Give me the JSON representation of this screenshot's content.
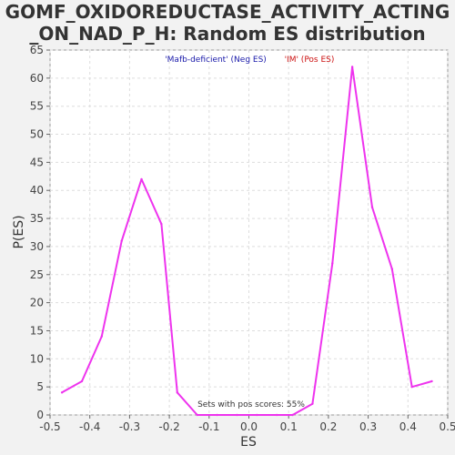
{
  "chart_data": {
    "type": "line",
    "title_lines": [
      "GOMF_OXIDOREDUCTASE_ACTIVITY_ACTING",
      "_ON_NAD_P_H: Random ES distribution"
    ],
    "xlabel": "ES",
    "ylabel": "P(ES)",
    "xlim": [
      -0.5,
      0.5
    ],
    "ylim": [
      0,
      65
    ],
    "x_ticks": [
      -0.5,
      -0.4,
      -0.3,
      -0.2,
      -0.1,
      0.0,
      0.1,
      0.2,
      0.3,
      0.4,
      0.5
    ],
    "x_tick_labels": [
      "-0.5",
      "-0.4",
      "-0.3",
      "-0.2",
      "-0.1",
      "0.0",
      "0.1",
      "0.2",
      "0.3",
      "0.4",
      "0.5"
    ],
    "y_ticks": [
      0,
      5,
      10,
      15,
      20,
      25,
      30,
      35,
      40,
      45,
      50,
      55,
      60,
      65
    ],
    "y_tick_labels": [
      "0",
      "5",
      "10",
      "15",
      "20",
      "25",
      "30",
      "35",
      "40",
      "45",
      "50",
      "55",
      "60",
      "65"
    ],
    "grid": true,
    "legend": [
      {
        "label": "'Mafb-deficient' (Neg ES)",
        "color": "#1a1aaa"
      },
      {
        "label": "'IM' (Pos ES)",
        "color": "#cc1111"
      }
    ],
    "annotation": "Sets with pos scores: 55%",
    "series": [
      {
        "color": "#ee33ee",
        "x": [
          -0.47,
          -0.42,
          -0.37,
          -0.32,
          -0.27,
          -0.22,
          -0.18,
          -0.13,
          -0.08,
          -0.03,
          0.02,
          0.07,
          0.11,
          0.16,
          0.21,
          0.26,
          0.31,
          0.36,
          0.41,
          0.46
        ],
        "y": [
          4,
          6,
          14,
          31,
          42,
          34,
          4,
          0,
          0,
          0,
          0,
          0,
          0,
          2,
          27,
          62,
          37,
          26,
          5,
          6
        ]
      }
    ]
  }
}
